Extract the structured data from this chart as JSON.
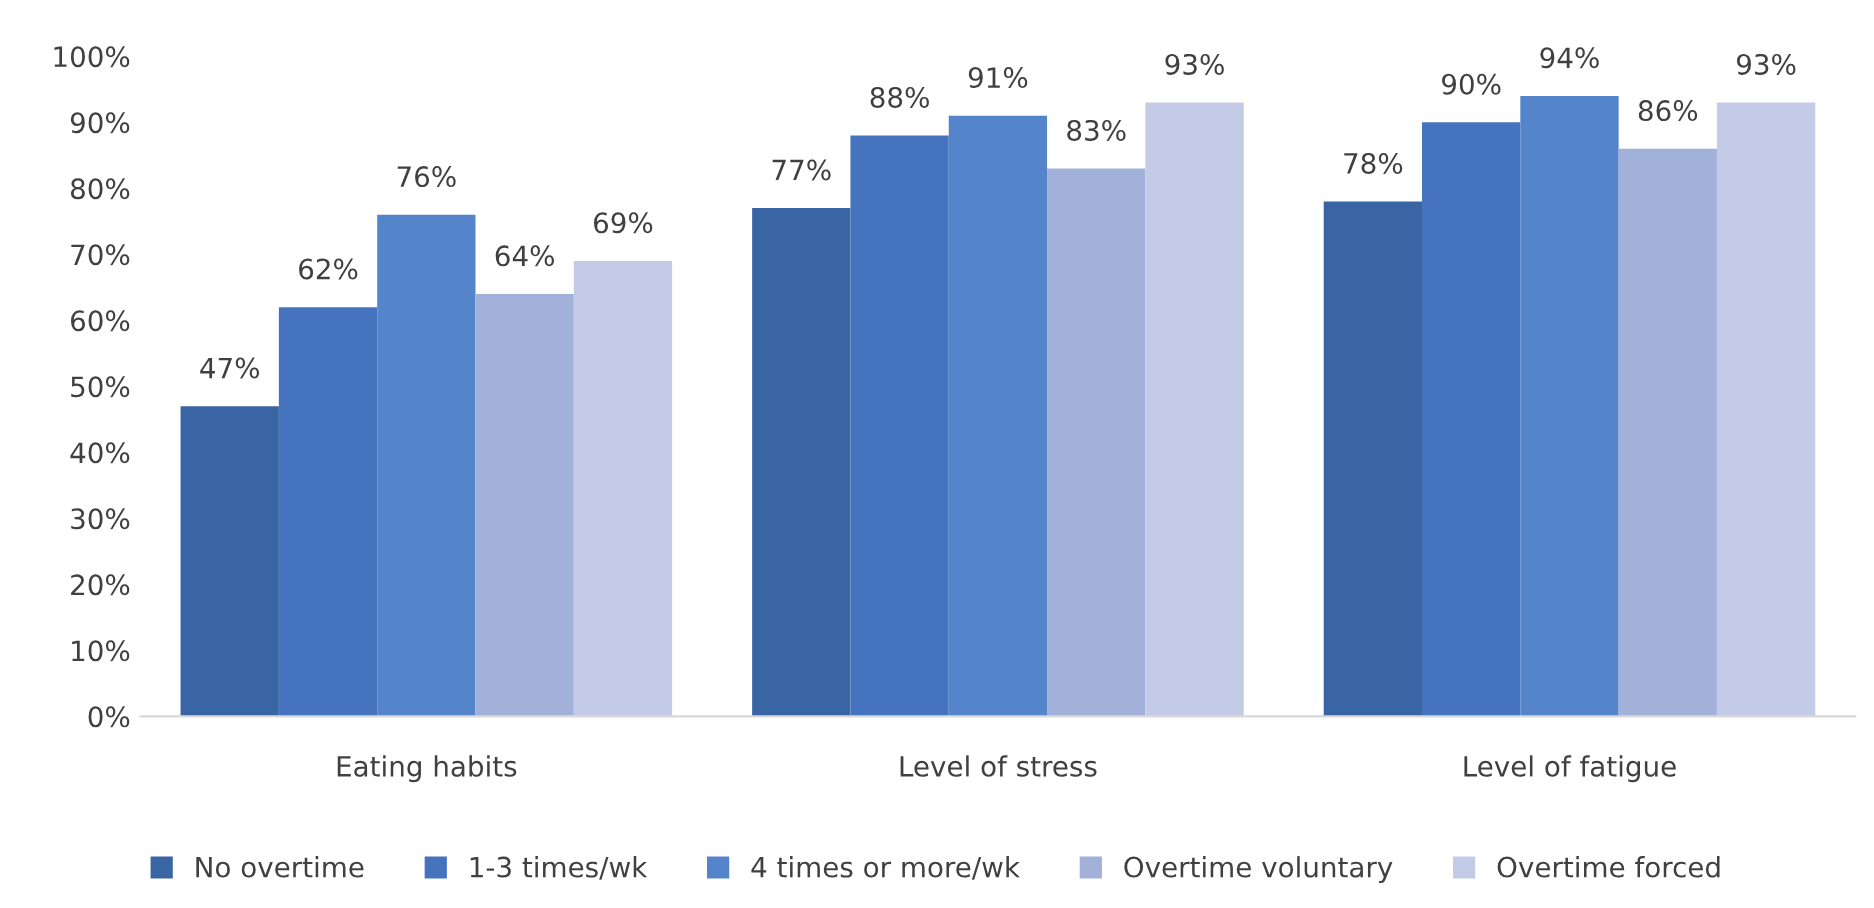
{
  "chart_data": {
    "type": "bar",
    "categories": [
      "Eating habits",
      "Level of stress",
      "Level of fatigue"
    ],
    "series": [
      {
        "name": "No overtime",
        "color": "#3a65a4",
        "values": [
          47,
          77,
          78
        ],
        "value_labels": [
          "47%",
          "77%",
          "78%"
        ]
      },
      {
        "name": "1-3 times/wk",
        "color": "#4673bd",
        "values": [
          62,
          88,
          90
        ],
        "value_labels": [
          "62%",
          "88%",
          "90%"
        ]
      },
      {
        "name": "4 times or more/wk",
        "color": "#5485cb",
        "values": [
          76,
          91,
          94
        ],
        "value_labels": [
          "76%",
          "91%",
          "94%"
        ]
      },
      {
        "name": "Overtime voluntary",
        "color": "#a2b1d9",
        "values": [
          64,
          83,
          86
        ],
        "value_labels": [
          "64%",
          "83%",
          "86%"
        ]
      },
      {
        "name": "Overtime forced",
        "color": "#c4cbe6",
        "values": [
          69,
          93,
          93
        ],
        "value_labels": [
          "69%",
          "93%",
          "93%"
        ]
      }
    ],
    "ylim": [
      0,
      100
    ],
    "yticks": [
      {
        "value": 0,
        "label": "0%"
      },
      {
        "value": 10,
        "label": "10%"
      },
      {
        "value": 20,
        "label": "20%"
      },
      {
        "value": 30,
        "label": "30%"
      },
      {
        "value": 40,
        "label": "40%"
      },
      {
        "value": 50,
        "label": "50%"
      },
      {
        "value": 60,
        "label": "60%"
      },
      {
        "value": 70,
        "label": "70%"
      },
      {
        "value": 80,
        "label": "80%"
      },
      {
        "value": 90,
        "label": "90%"
      },
      {
        "value": 100,
        "label": "100%"
      }
    ],
    "grid": false,
    "legend": "bottom"
  }
}
